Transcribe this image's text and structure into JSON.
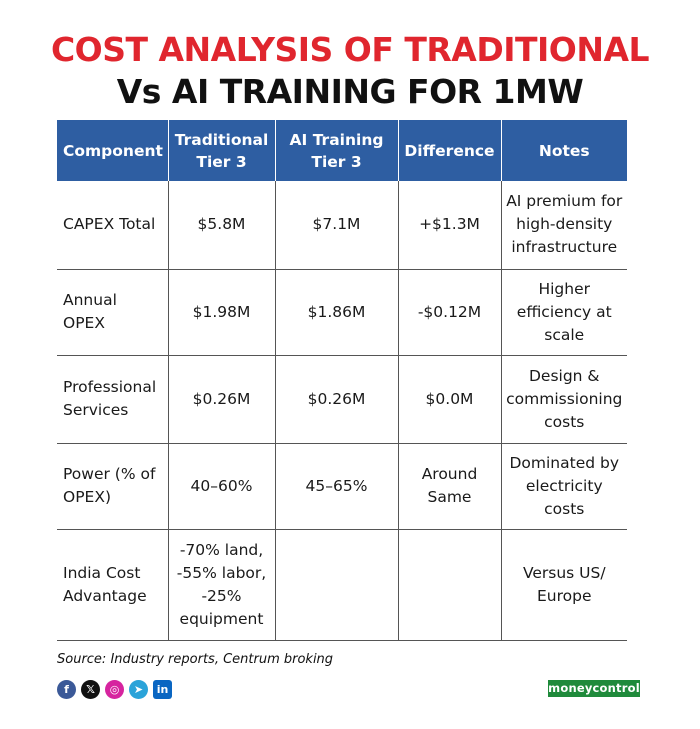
{
  "title": {
    "line1": "COST ANALYSIS OF TRADITIONAL",
    "line2": "Vs AI TRAINING FOR 1MW"
  },
  "table": {
    "headers": [
      "Component",
      "Traditional Tier 3",
      "AI Training Tier 3",
      "Difference",
      "Notes"
    ],
    "rows": [
      [
        "CAPEX Total",
        "$5.8M",
        "$7.1M",
        "+$1.3M",
        "AI premium for high-density infrastructure"
      ],
      [
        "Annual OPEX",
        "$1.98M",
        "$1.86M",
        "-$0.12M",
        "Higher efficiency at scale"
      ],
      [
        "Professional Services",
        "$0.26M",
        "$0.26M",
        "$0.0M",
        "Design & commissioning costs"
      ],
      [
        "Power (% of OPEX)",
        "40–60%",
        "45–65%",
        "Around Same",
        "Dominated by electricity costs"
      ],
      [
        "India Cost Advantage",
        "-70% land, -55% labor, -25% equipment",
        "",
        "",
        "Versus US/ Europe"
      ]
    ]
  },
  "source": "Source: Industry reports, Centrum broking",
  "socials": [
    {
      "name": "facebook-icon",
      "glyph": "f",
      "color": "#3b5998"
    },
    {
      "name": "x-icon",
      "glyph": "𝕏",
      "color": "#111111"
    },
    {
      "name": "instagram-icon",
      "glyph": "◎",
      "color": "#d6249f"
    },
    {
      "name": "telegram-icon",
      "glyph": "➤",
      "color": "#2aa3d9"
    },
    {
      "name": "linkedin-icon",
      "glyph": "in",
      "color": "#0a66c2"
    }
  ],
  "logo": "moneycontrol",
  "colors": {
    "title_accent": "#e0262e",
    "header_bg": "#2e5ea2",
    "logo_bg": "#1f8a3b"
  }
}
